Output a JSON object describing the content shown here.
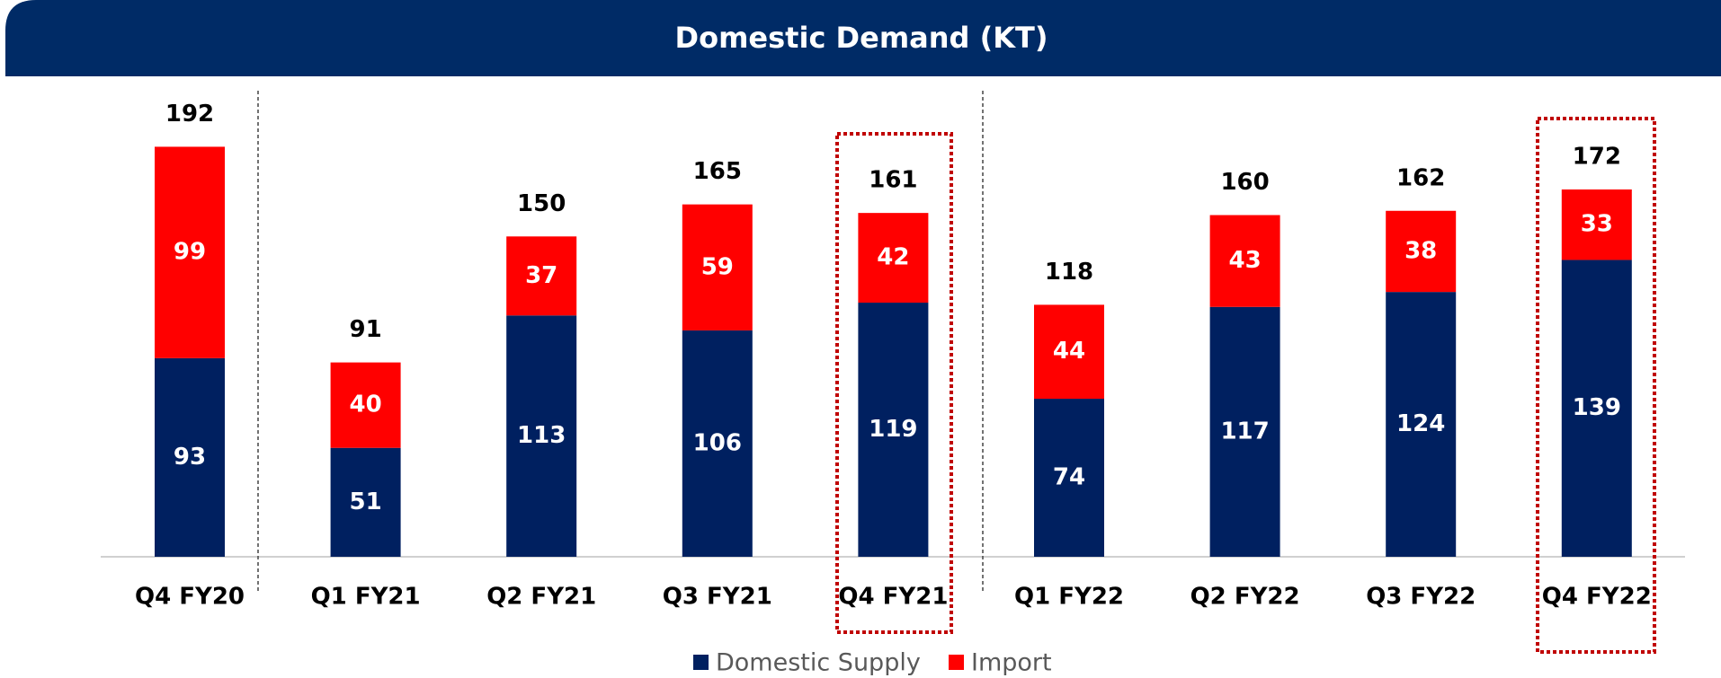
{
  "chart_data": {
    "type": "stacked_bar",
    "title": "Domestic Demand (KT)",
    "categories": [
      "Q4 FY20",
      "Q1 FY21",
      "Q2 FY21",
      "Q3 FY21",
      "Q4 FY21",
      "Q1 FY22",
      "Q2 FY22",
      "Q3 FY22",
      "Q4 FY22"
    ],
    "series": [
      {
        "name": "Domestic Supply",
        "color": "#002060",
        "values": [
          93,
          51,
          113,
          106,
          119,
          74,
          117,
          124,
          139
        ]
      },
      {
        "name": "Import",
        "color": "#ff0000",
        "values": [
          99,
          40,
          37,
          59,
          42,
          44,
          43,
          38,
          33
        ]
      }
    ],
    "totals": [
      192,
      91,
      150,
      165,
      161,
      118,
      160,
      162,
      172
    ],
    "legend": "bottom"
  }
}
